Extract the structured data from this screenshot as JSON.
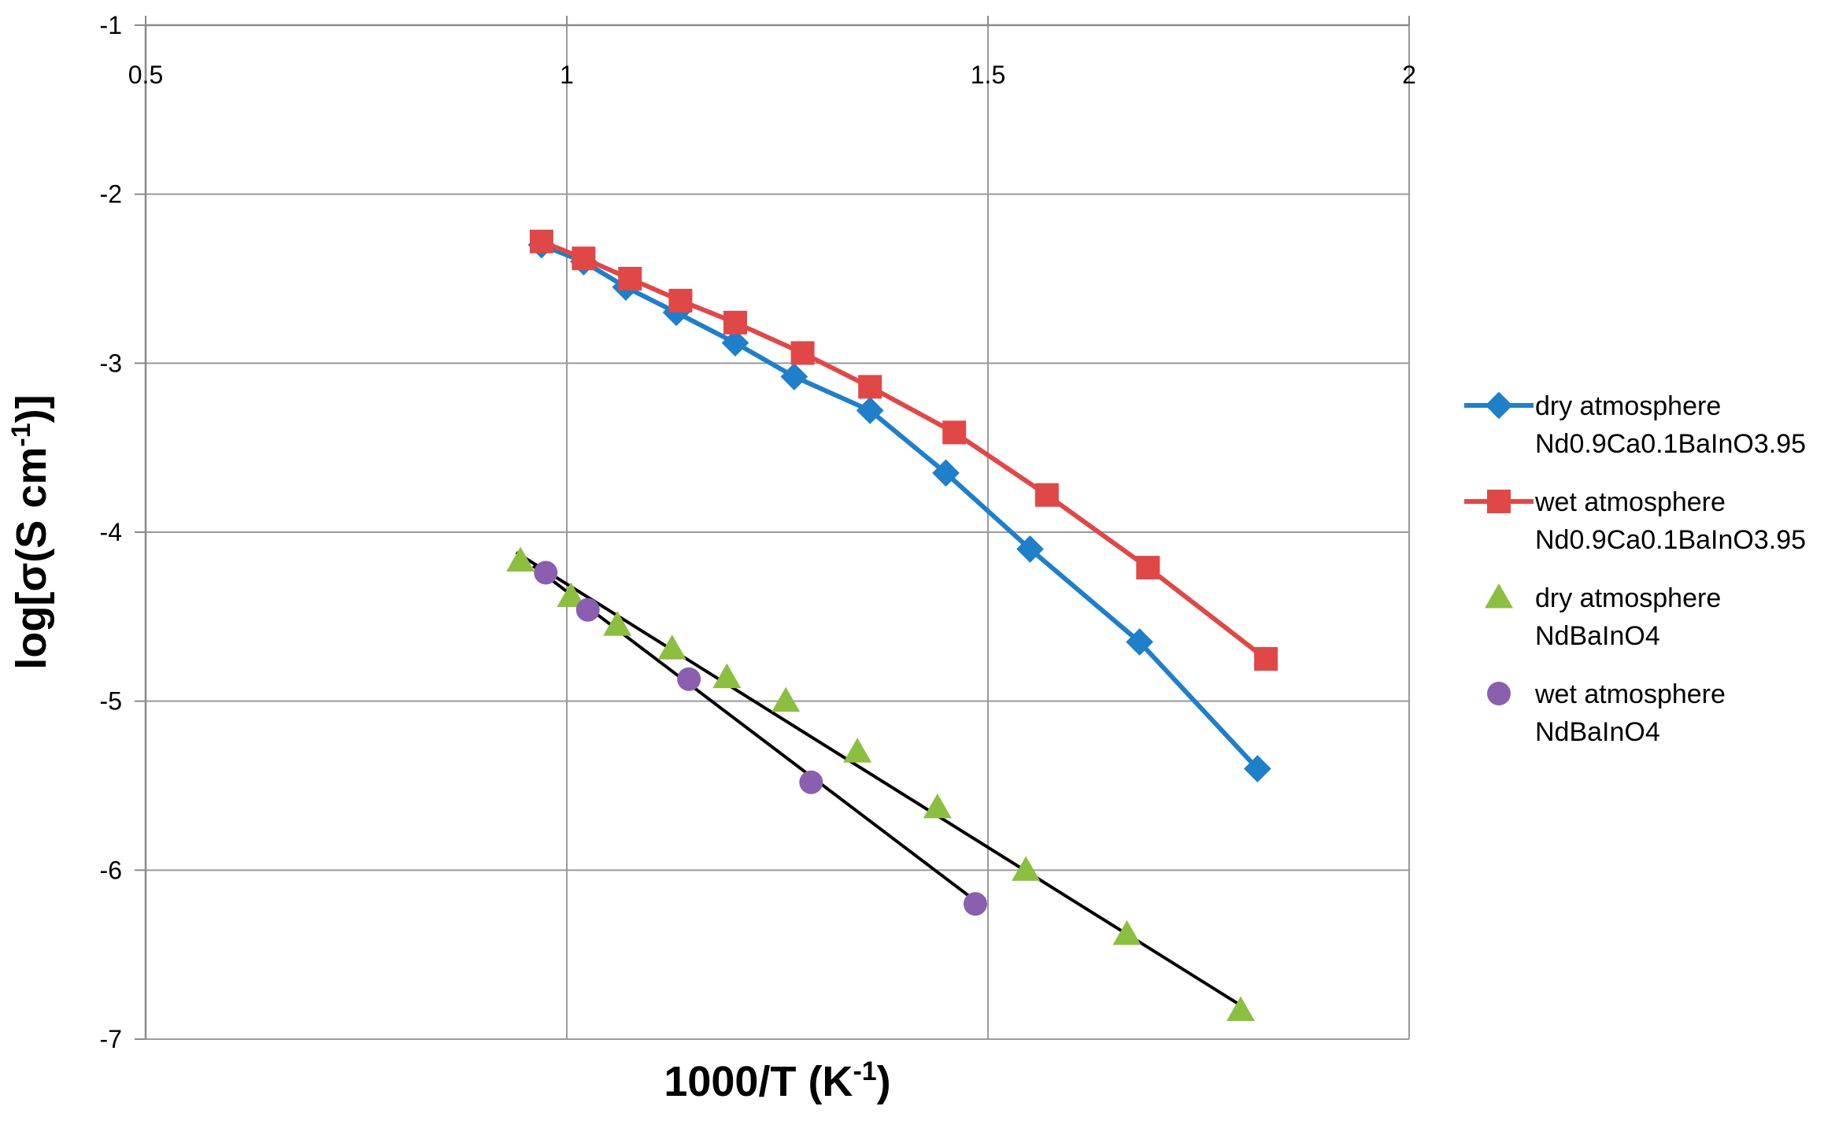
{
  "chart_data": {
    "type": "scatter",
    "title": "",
    "xlabel": "1000/T (K⁻¹)",
    "ylabel": "log[σ(S cm⁻¹)]",
    "xlabel_parts": {
      "main": "1000/T (K",
      "sup": "-1",
      "end": ")"
    },
    "ylabel_parts": {
      "main": "log[σ(S cm",
      "sup": "-1",
      "end": ")]"
    },
    "xlim": [
      0.5,
      2
    ],
    "ylim": [
      -7,
      -1
    ],
    "x_ticks": [
      "0.5",
      "1",
      "1.5",
      "2"
    ],
    "y_ticks": [
      "-1",
      "-2",
      "-3",
      "-4",
      "-5",
      "-6",
      "-7"
    ],
    "x_tick_values": [
      0.5,
      1,
      1.5,
      2
    ],
    "y_tick_values": [
      -1,
      -2,
      -3,
      -4,
      -5,
      -6,
      -7
    ],
    "x_tick_position": "top",
    "grid": true,
    "legend_position": "right",
    "series": [
      {
        "name_lines": [
          "dry atmosphere",
          "Nd0.9Ca0.1BaInO3.95"
        ],
        "color": "#1f7fc9",
        "marker": "diamond",
        "line": true,
        "x": [
          0.97,
          1.02,
          1.07,
          1.13,
          1.2,
          1.27,
          1.36,
          1.45,
          1.55,
          1.68,
          1.82
        ],
        "y": [
          -2.3,
          -2.4,
          -2.55,
          -2.7,
          -2.88,
          -3.08,
          -3.28,
          -3.65,
          -4.1,
          -4.65,
          -5.4
        ]
      },
      {
        "name_lines": [
          "wet atmosphere",
          "Nd0.9Ca0.1BaInO3.95"
        ],
        "color": "#e04848",
        "marker": "square",
        "line": true,
        "x": [
          0.97,
          1.02,
          1.075,
          1.135,
          1.2,
          1.28,
          1.36,
          1.46,
          1.57,
          1.69,
          1.83
        ],
        "y": [
          -2.28,
          -2.38,
          -2.5,
          -2.63,
          -2.76,
          -2.94,
          -3.14,
          -3.41,
          -3.78,
          -4.21,
          -4.75
        ]
      },
      {
        "name_lines": [
          "dry atmosphere",
          "NdBaInO4"
        ],
        "color": "#8cbf3f",
        "marker": "triangle",
        "line": false,
        "x": [
          0.945,
          1.005,
          1.06,
          1.125,
          1.19,
          1.26,
          1.345,
          1.44,
          1.545,
          1.665,
          1.8
        ],
        "y": [
          -4.17,
          -4.38,
          -4.55,
          -4.69,
          -4.86,
          -5.0,
          -5.3,
          -5.63,
          -6.0,
          -6.38,
          -6.83
        ]
      },
      {
        "name_lines": [
          "wet atmosphere",
          "NdBaInO4"
        ],
        "color": "#8b5fb0",
        "marker": "circle",
        "line": false,
        "x": [
          0.975,
          1.025,
          1.145,
          1.29,
          1.485
        ],
        "y": [
          -4.24,
          -4.46,
          -4.87,
          -5.48,
          -6.2
        ]
      }
    ],
    "fit_lines": [
      {
        "color": "#000000",
        "x": [
          0.94,
          1.8
        ],
        "y": [
          -4.12,
          -6.8
        ]
      },
      {
        "color": "#000000",
        "x": [
          0.96,
          1.49
        ],
        "y": [
          -4.2,
          -6.2
        ]
      }
    ]
  }
}
